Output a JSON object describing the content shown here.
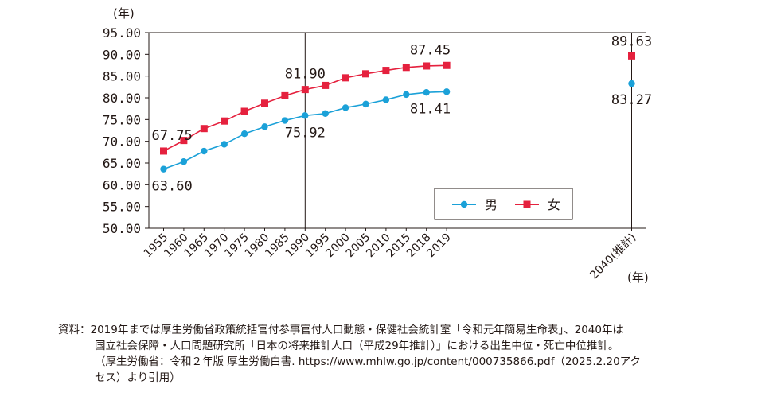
{
  "chart_data": {
    "type": "line",
    "ylabel": "(年)",
    "xlabel": "(年)",
    "ylim": [
      50,
      95
    ],
    "yticks": [
      "95.00",
      "90.00",
      "85.00",
      "80.00",
      "75.00",
      "70.00",
      "65.00",
      "60.00",
      "55.00",
      "50.00"
    ],
    "ytick_values": [
      95,
      90,
      85,
      80,
      75,
      70,
      65,
      60,
      55,
      50
    ],
    "categories": [
      "1955",
      "1960",
      "1965",
      "1970",
      "1975",
      "1980",
      "1985",
      "1990",
      "1995",
      "2000",
      "2005",
      "2010",
      "2015",
      "2018",
      "2019",
      "2040(推計)"
    ],
    "series": [
      {
        "name": "男",
        "color": "#1ba1d8",
        "marker": "circle",
        "values": [
          63.6,
          65.32,
          67.74,
          69.31,
          71.73,
          73.35,
          74.78,
          75.92,
          76.38,
          77.72,
          78.56,
          79.55,
          80.75,
          81.25,
          81.41,
          83.27
        ]
      },
      {
        "name": "女",
        "color": "#e5213e",
        "marker": "square",
        "values": [
          67.75,
          70.19,
          72.92,
          74.66,
          76.89,
          78.76,
          80.48,
          81.9,
          82.85,
          84.6,
          85.52,
          86.3,
          86.99,
          87.32,
          87.45,
          89.63
        ]
      }
    ],
    "annotations": [
      {
        "series": 1,
        "index": 0,
        "text": "67.75"
      },
      {
        "series": 0,
        "index": 0,
        "text": "63.60"
      },
      {
        "series": 1,
        "index": 7,
        "text": "81.90"
      },
      {
        "series": 0,
        "index": 7,
        "text": "75.92"
      },
      {
        "series": 1,
        "index": 14,
        "text": "87.45"
      },
      {
        "series": 0,
        "index": 14,
        "text": "81.41"
      },
      {
        "series": 1,
        "index": 15,
        "text": "89.63"
      },
      {
        "series": 0,
        "index": 15,
        "text": "83.27"
      }
    ],
    "legend": {
      "placement": "lower-right",
      "items": [
        "男",
        "女"
      ]
    }
  },
  "source": {
    "lines": [
      "資料：2019年までは厚生労働省政策統括官付参事官付人口動態・保健社会統計室「令和元年簡易生命表」、2040年は",
      "国立社会保障・人口問題研究所「日本の将来推計人口（平成29年推計）」における出生中位・死亡中位推計。",
      "（厚生労働省：令和２年版 厚生労働白書. https://www.mhlw.go.jp/content/000735866.pdf（2025.2.20アク",
      "セス）より引用）"
    ]
  }
}
